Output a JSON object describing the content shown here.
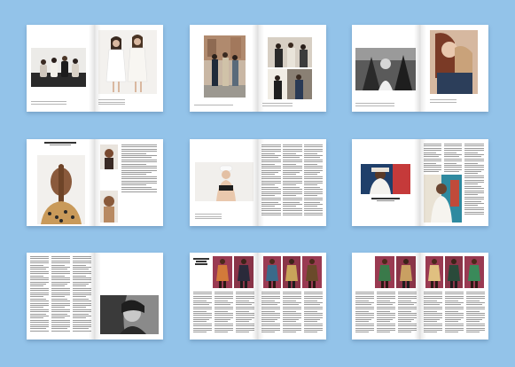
{
  "background_color": "#93c3e9",
  "spreads": [
    {
      "id": "1",
      "content": "group-photo-and-fashion-portrait"
    },
    {
      "id": "2",
      "content": "street-style-photo-collage"
    },
    {
      "id": "3",
      "content": "black-and-white-and-color-portraits"
    },
    {
      "id": "4",
      "content": "braided-hair-portraits-with-text"
    },
    {
      "id": "5",
      "content": "model-portrait-with-text-columns"
    },
    {
      "id": "6",
      "content": "portraits-with-text-columns"
    },
    {
      "id": "7",
      "content": "text-columns-and-bw-portrait"
    },
    {
      "id": "8",
      "content": "outfit-grid-with-text-columns"
    },
    {
      "id": "9",
      "content": "outfit-grid-with-text-columns"
    }
  ]
}
